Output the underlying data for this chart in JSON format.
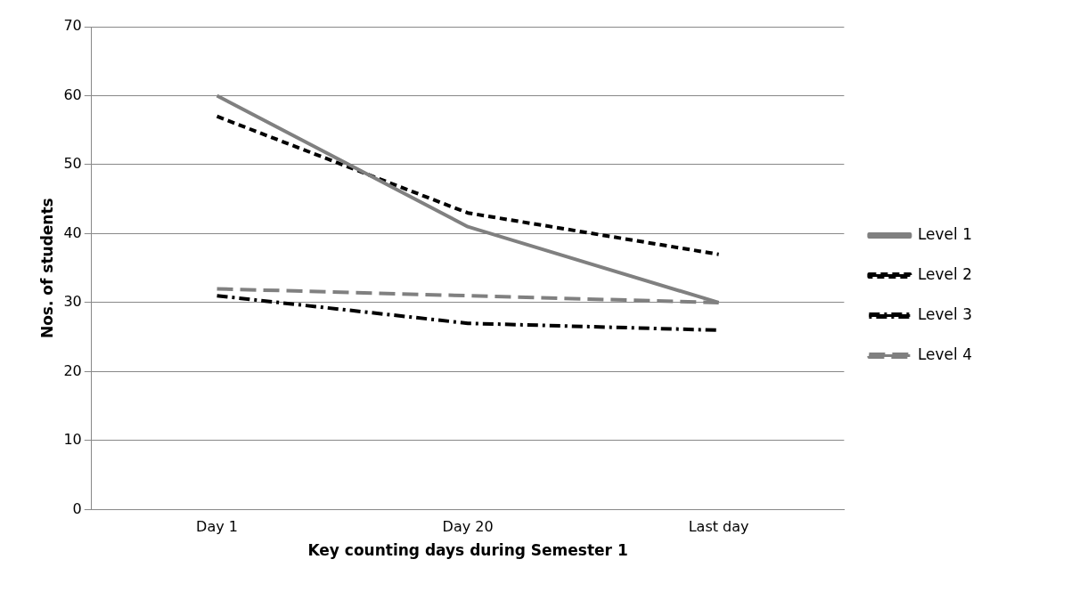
{
  "chart_data": {
    "type": "line",
    "xlabel": "Key counting days during Semester 1",
    "ylabel": "Nos. of students",
    "categories": [
      "Day 1",
      "Day 20",
      "Last day"
    ],
    "series": [
      {
        "name": "Level 1",
        "color": "#808080",
        "line_style": "solid",
        "values": [
          60,
          41,
          30
        ]
      },
      {
        "name": "Level 2",
        "color": "#000000",
        "line_style": "dashed",
        "values": [
          57,
          43,
          37
        ]
      },
      {
        "name": "Level 3",
        "color": "#000000",
        "line_style": "dashdot",
        "values": [
          31,
          27,
          26
        ]
      },
      {
        "name": "Level 4",
        "color": "#808080",
        "line_style": "longdash",
        "values": [
          32,
          31,
          30
        ]
      }
    ],
    "ylim": [
      0,
      70
    ],
    "yticks": [
      0,
      10,
      20,
      30,
      40,
      50,
      60,
      70
    ],
    "grid": "y",
    "legend": "right",
    "marker": "none"
  }
}
